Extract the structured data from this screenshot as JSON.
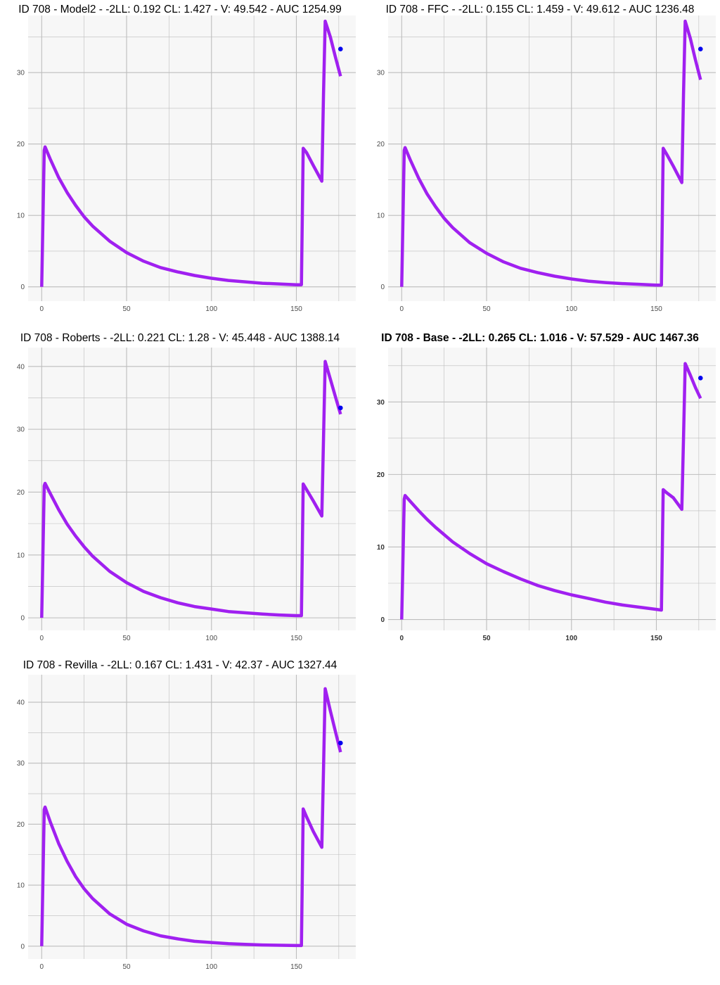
{
  "colors": {
    "panel_background": "#f7f7f7",
    "grid": "#bdbdbd",
    "curve": "#a020f0",
    "observation_point": "#0000ee"
  },
  "chart_data": [
    {
      "type": "line",
      "title": "ID 708 - Model2 - -2LL: 0.192 CL: 1.427 - V: 49.542 - AUC 1254.99",
      "title_bold": false,
      "xlabel": "",
      "ylabel": "",
      "xlim": [
        -8,
        185
      ],
      "ylim": [
        -2,
        38
      ],
      "x_ticks": [
        0,
        50,
        100,
        150
      ],
      "y_ticks": [
        0,
        10,
        20,
        30
      ],
      "grid": true,
      "series": [
        {
          "x": [
            0,
            1.5,
            2,
            5,
            10,
            15,
            20,
            25,
            30,
            40,
            50,
            60,
            70,
            80,
            90,
            100,
            110,
            120,
            130,
            140,
            150,
            153,
            154,
            156,
            160,
            165,
            166,
            167,
            170,
            173,
            176
          ],
          "y": [
            0,
            19.1,
            19.6,
            17.9,
            15.3,
            13.2,
            11.4,
            9.8,
            8.5,
            6.4,
            4.8,
            3.6,
            2.7,
            2.1,
            1.6,
            1.2,
            0.9,
            0.7,
            0.5,
            0.4,
            0.3,
            0.3,
            19.4,
            18.8,
            17.0,
            14.8,
            27.0,
            37.2,
            35.0,
            32.2,
            29.5
          ]
        }
      ],
      "observations": [
        {
          "x": 176,
          "y": 33.3
        }
      ]
    },
    {
      "type": "line",
      "title": "ID 708 - FFC - -2LL: 0.155 CL: 1.459 - V: 49.612 - AUC 1236.48",
      "title_bold": false,
      "xlabel": "",
      "ylabel": "",
      "xlim": [
        -8,
        185
      ],
      "ylim": [
        -2,
        38
      ],
      "x_ticks": [
        0,
        50,
        100,
        150
      ],
      "y_ticks": [
        0,
        10,
        20,
        30
      ],
      "grid": true,
      "series": [
        {
          "x": [
            0,
            1.5,
            2,
            5,
            10,
            15,
            20,
            25,
            30,
            40,
            50,
            60,
            70,
            80,
            90,
            100,
            110,
            120,
            130,
            140,
            150,
            153,
            154,
            156,
            160,
            165,
            166,
            167,
            170,
            173,
            176
          ],
          "y": [
            0,
            19.1,
            19.5,
            17.8,
            15.2,
            13.0,
            11.2,
            9.6,
            8.3,
            6.2,
            4.7,
            3.5,
            2.6,
            2.0,
            1.5,
            1.1,
            0.8,
            0.6,
            0.45,
            0.35,
            0.25,
            0.25,
            19.4,
            18.6,
            16.9,
            14.6,
            27.0,
            37.2,
            34.8,
            31.8,
            29.0
          ]
        }
      ],
      "observations": [
        {
          "x": 176,
          "y": 33.3
        }
      ]
    },
    {
      "type": "line",
      "title": "ID 708 - Roberts - -2LL: 0.221 CL: 1.28 - V: 45.448 - AUC 1388.14",
      "title_bold": false,
      "xlabel": "",
      "ylabel": "",
      "xlim": [
        -8,
        185
      ],
      "ylim": [
        -2,
        43
      ],
      "x_ticks": [
        0,
        50,
        100,
        150
      ],
      "y_ticks": [
        0,
        10,
        20,
        30,
        40
      ],
      "grid": true,
      "series": [
        {
          "x": [
            0,
            1.5,
            2,
            5,
            10,
            15,
            20,
            25,
            30,
            40,
            50,
            60,
            70,
            80,
            90,
            100,
            110,
            120,
            130,
            140,
            150,
            153,
            154,
            156,
            160,
            165,
            166,
            167,
            170,
            173,
            176
          ],
          "y": [
            0,
            21.0,
            21.4,
            19.8,
            17.2,
            14.9,
            13.0,
            11.3,
            9.8,
            7.4,
            5.6,
            4.2,
            3.2,
            2.4,
            1.8,
            1.4,
            1.0,
            0.8,
            0.6,
            0.45,
            0.35,
            0.35,
            21.3,
            20.4,
            18.6,
            16.2,
            28.5,
            40.8,
            38.0,
            35.2,
            32.4
          ]
        }
      ],
      "observations": [
        {
          "x": 176,
          "y": 33.4
        }
      ]
    },
    {
      "type": "line",
      "title": "ID 708 - Base - -2LL: 0.265 CL: 1.016 - V: 57.529 - AUC 1467.36",
      "title_bold": true,
      "xlabel": "",
      "ylabel": "",
      "xlim": [
        -8,
        185
      ],
      "ylim": [
        -1.5,
        37.5
      ],
      "x_ticks": [
        0,
        50,
        100,
        150
      ],
      "y_ticks": [
        0,
        10,
        20,
        30
      ],
      "grid": true,
      "series": [
        {
          "x": [
            0,
            1.5,
            2,
            5,
            10,
            15,
            20,
            25,
            30,
            40,
            50,
            60,
            70,
            80,
            90,
            100,
            110,
            120,
            130,
            140,
            150,
            153,
            154,
            156,
            160,
            165,
            166,
            167,
            170,
            173,
            176
          ],
          "y": [
            0,
            16.6,
            17.1,
            16.3,
            15.0,
            13.8,
            12.7,
            11.7,
            10.7,
            9.1,
            7.7,
            6.6,
            5.6,
            4.7,
            4.0,
            3.4,
            2.9,
            2.4,
            2.0,
            1.7,
            1.4,
            1.3,
            17.9,
            17.5,
            16.8,
            15.2,
            25.0,
            35.3,
            33.7,
            32.0,
            30.5
          ]
        }
      ],
      "observations": [
        {
          "x": 176,
          "y": 33.3
        }
      ]
    },
    {
      "type": "line",
      "title": "ID 708 - Revilla - -2LL: 0.167 CL: 1.431 - V: 42.37 - AUC 1327.44",
      "title_bold": false,
      "xlabel": "",
      "ylabel": "",
      "xlim": [
        -8,
        185
      ],
      "ylim": [
        -2.1,
        44.5
      ],
      "x_ticks": [
        0,
        50,
        100,
        150
      ],
      "y_ticks": [
        0,
        10,
        20,
        30,
        40
      ],
      "grid": true,
      "series": [
        {
          "x": [
            0,
            1.5,
            2,
            5,
            10,
            15,
            20,
            25,
            30,
            40,
            50,
            60,
            70,
            80,
            90,
            100,
            110,
            120,
            130,
            140,
            150,
            153,
            154,
            156,
            160,
            165,
            166,
            167,
            170,
            173,
            176
          ],
          "y": [
            0,
            22.4,
            22.8,
            20.4,
            16.8,
            13.9,
            11.4,
            9.4,
            7.8,
            5.3,
            3.6,
            2.5,
            1.7,
            1.2,
            0.8,
            0.6,
            0.4,
            0.3,
            0.2,
            0.15,
            0.1,
            0.1,
            22.5,
            21.2,
            18.8,
            16.2,
            29.0,
            42.2,
            38.6,
            35.2,
            31.8
          ]
        }
      ],
      "observations": [
        {
          "x": 176,
          "y": 33.3
        }
      ]
    }
  ]
}
